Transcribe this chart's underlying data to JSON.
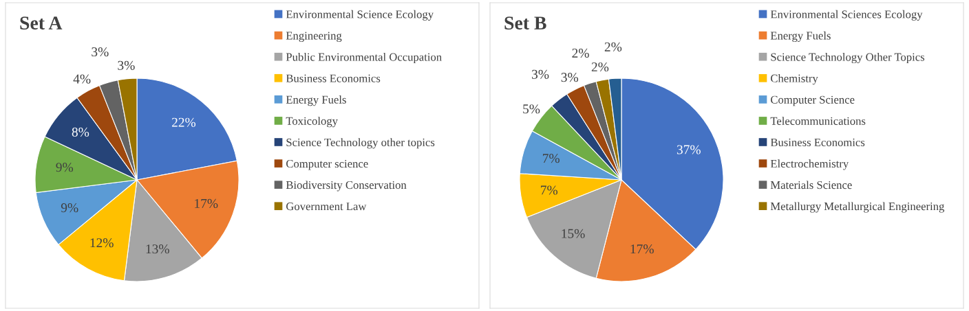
{
  "chart_data": [
    {
      "type": "pie",
      "title": "Set A",
      "legend": "right",
      "categories": [
        "Environmental Science Ecology",
        "Engineering",
        "Public Environmental Occupation",
        "Business Economics",
        "Energy Fuels",
        "Toxicology",
        "Science Technology other topics",
        "Computer science",
        "Biodiversity Conservation",
        "Government Law"
      ],
      "values": [
        22,
        17,
        13,
        12,
        9,
        9,
        8,
        4,
        3,
        3
      ],
      "value_labels": [
        "22%",
        "17%",
        "13%",
        "12%",
        "9%",
        "9%",
        "8%",
        "4%",
        "3%",
        "3%"
      ],
      "colors": [
        "#4472c4",
        "#ed7d31",
        "#a5a5a5",
        "#ffc000",
        "#5b9bd5",
        "#70ad47",
        "#264478",
        "#9e480e",
        "#636363",
        "#997300"
      ]
    },
    {
      "type": "pie",
      "title": "Set B",
      "legend": "right",
      "categories": [
        "Environmental Sciences Ecology",
        "Energy Fuels",
        "Science Technology Other Topics",
        "Chemistry",
        "Computer Science",
        "Telecommunications",
        "Business Economics",
        "Electrochemistry",
        "Materials Science",
        "Metallurgy Metallurgical Engineering",
        null
      ],
      "values": [
        37,
        17,
        15,
        7,
        7,
        5,
        3,
        3,
        2,
        2,
        2
      ],
      "value_labels": [
        "37%",
        "17%",
        "15%",
        "7%",
        "7%",
        "5%",
        "3%",
        "3%",
        "2%",
        "2%",
        "2%"
      ],
      "colors": [
        "#4472c4",
        "#ed7d31",
        "#a5a5a5",
        "#ffc000",
        "#5b9bd5",
        "#70ad47",
        "#264478",
        "#9e480e",
        "#636363",
        "#997300",
        "#255e91"
      ]
    }
  ]
}
